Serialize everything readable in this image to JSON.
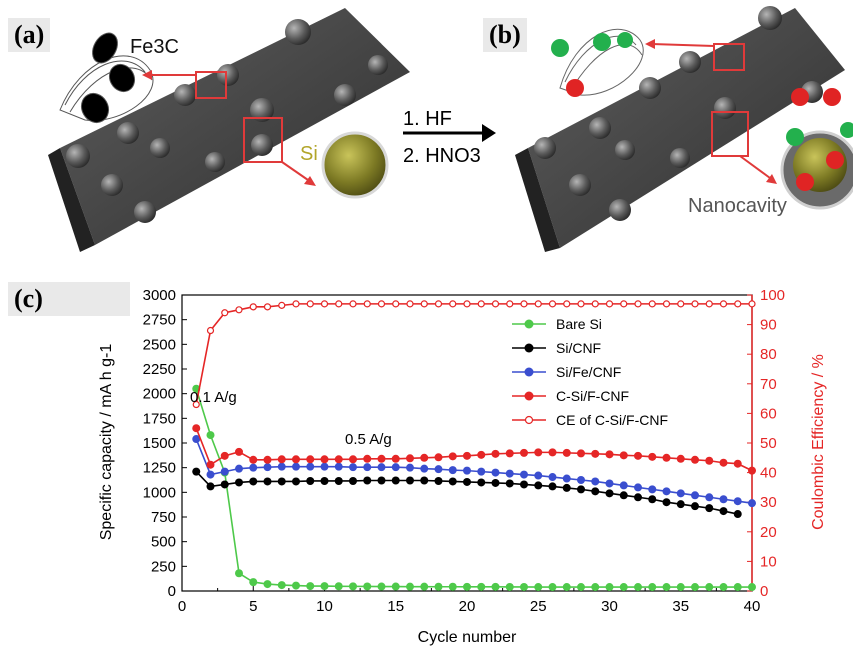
{
  "panels": {
    "a": "(a)",
    "b": "(b)",
    "c": "(c)"
  },
  "scheme": {
    "fe3c_label": "Fe3C",
    "si_label": "Si",
    "step1": "1.  HF",
    "step2": "2.  HNO3",
    "nanocavity_label": "Nanocavity",
    "electron_symbol": "e",
    "lithium_symbol": "Li"
  },
  "chart_data": {
    "type": "line",
    "xlabel": "Cycle number",
    "ylabel": "Specific capacity / mA h g-1",
    "y2label": "Coulombic Efficiency / %",
    "xlim": [
      0,
      40
    ],
    "ylim": [
      0,
      3000
    ],
    "y2lim": [
      0,
      100
    ],
    "x_ticks": [
      0,
      5,
      10,
      15,
      20,
      25,
      30,
      35,
      40
    ],
    "y_ticks": [
      0,
      250,
      500,
      750,
      1000,
      1250,
      1500,
      1750,
      2000,
      2250,
      2500,
      2750,
      3000
    ],
    "y2_ticks": [
      0,
      10,
      20,
      30,
      40,
      50,
      60,
      70,
      80,
      90,
      100
    ],
    "annotations": [
      "0.1 A/g",
      "0.5 A/g"
    ],
    "legend_position": "top-right",
    "colors": {
      "bare_si": "#4ec94a",
      "si_cnf": "#000000",
      "si_fe_cnf": "#3a4ecf",
      "c_si_f_cnf": "#e52626",
      "ce": "#e52626",
      "right_axis": "#e52626"
    },
    "series": [
      {
        "name": "Bare Si",
        "axis": "left",
        "marker": "filled",
        "x": [
          1,
          2,
          3,
          4,
          5,
          6,
          7,
          8,
          9,
          10,
          11,
          12,
          13,
          14,
          15,
          16,
          17,
          18,
          19,
          20,
          21,
          22,
          23,
          24,
          25,
          26,
          27,
          28,
          29,
          30,
          31,
          32,
          33,
          34,
          35,
          36,
          37,
          38,
          39,
          40
        ],
        "values": [
          2050,
          1580,
          1200,
          180,
          90,
          70,
          60,
          55,
          50,
          50,
          48,
          47,
          46,
          45,
          45,
          44,
          44,
          43,
          43,
          42,
          42,
          42,
          41,
          41,
          40,
          40,
          40,
          40,
          40,
          40,
          40,
          40,
          40,
          40,
          40,
          40,
          40,
          40,
          40,
          40
        ]
      },
      {
        "name": "Si/CNF",
        "axis": "left",
        "marker": "filled",
        "x": [
          1,
          2,
          3,
          4,
          5,
          6,
          7,
          8,
          9,
          10,
          11,
          12,
          13,
          14,
          15,
          16,
          17,
          18,
          19,
          20,
          21,
          22,
          23,
          24,
          25,
          26,
          27,
          28,
          29,
          30,
          31,
          32,
          33,
          34,
          35,
          36,
          37,
          38,
          39
        ],
        "values": [
          1210,
          1060,
          1080,
          1100,
          1110,
          1110,
          1110,
          1110,
          1115,
          1115,
          1115,
          1115,
          1120,
          1120,
          1120,
          1120,
          1120,
          1115,
          1110,
          1105,
          1100,
          1095,
          1090,
          1080,
          1070,
          1060,
          1045,
          1030,
          1010,
          990,
          970,
          950,
          930,
          900,
          880,
          860,
          840,
          810,
          780
        ]
      },
      {
        "name": "Si/Fe/CNF",
        "axis": "left",
        "marker": "filled",
        "x": [
          1,
          2,
          3,
          4,
          5,
          6,
          7,
          8,
          9,
          10,
          11,
          12,
          13,
          14,
          15,
          16,
          17,
          18,
          19,
          20,
          21,
          22,
          23,
          24,
          25,
          26,
          27,
          28,
          29,
          30,
          31,
          32,
          33,
          34,
          35,
          36,
          37,
          38,
          39,
          40
        ],
        "values": [
          1540,
          1180,
          1210,
          1240,
          1250,
          1255,
          1260,
          1260,
          1260,
          1260,
          1260,
          1255,
          1255,
          1255,
          1255,
          1250,
          1240,
          1235,
          1225,
          1220,
          1210,
          1200,
          1190,
          1180,
          1170,
          1155,
          1140,
          1125,
          1110,
          1090,
          1070,
          1050,
          1030,
          1010,
          990,
          970,
          950,
          930,
          910,
          890
        ]
      },
      {
        "name": "C-Si/F-CNF",
        "axis": "left",
        "marker": "filled",
        "x": [
          1,
          2,
          3,
          4,
          5,
          6,
          7,
          8,
          9,
          10,
          11,
          12,
          13,
          14,
          15,
          16,
          17,
          18,
          19,
          20,
          21,
          22,
          23,
          24,
          25,
          26,
          27,
          28,
          29,
          30,
          31,
          32,
          33,
          34,
          35,
          36,
          37,
          38,
          39,
          40
        ],
        "values": [
          1650,
          1280,
          1370,
          1410,
          1330,
          1330,
          1335,
          1335,
          1335,
          1335,
          1335,
          1335,
          1340,
          1340,
          1340,
          1345,
          1350,
          1355,
          1365,
          1370,
          1380,
          1390,
          1395,
          1400,
          1405,
          1405,
          1400,
          1395,
          1390,
          1385,
          1375,
          1370,
          1360,
          1350,
          1340,
          1330,
          1320,
          1300,
          1290,
          1220
        ]
      },
      {
        "name": "CE of C-Si/F-CNF",
        "axis": "right",
        "marker": "open",
        "x": [
          1,
          2,
          3,
          4,
          5,
          6,
          7,
          8,
          9,
          10,
          11,
          12,
          13,
          14,
          15,
          16,
          17,
          18,
          19,
          20,
          21,
          22,
          23,
          24,
          25,
          26,
          27,
          28,
          29,
          30,
          31,
          32,
          33,
          34,
          35,
          36,
          37,
          38,
          39,
          40
        ],
        "values": [
          63,
          88,
          94,
          95,
          96,
          96,
          96.5,
          97,
          97,
          97,
          97,
          97,
          97,
          97,
          97,
          97,
          97,
          97,
          97,
          97,
          97,
          97,
          97,
          97,
          97,
          97,
          97,
          97,
          97,
          97,
          97,
          97,
          97,
          97,
          97,
          97,
          97,
          97,
          97,
          97
        ]
      }
    ]
  }
}
